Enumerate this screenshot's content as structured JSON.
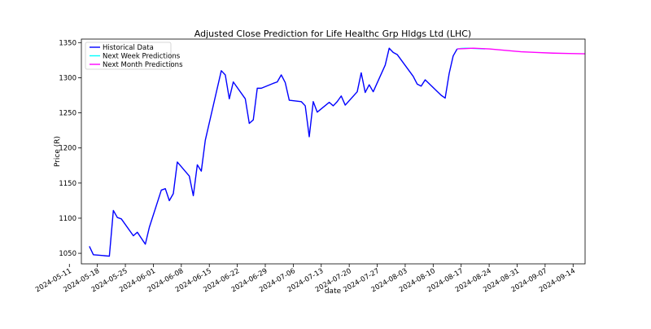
{
  "chart_data": {
    "type": "line",
    "title": "Adjusted Close Prediction for Life Healthc Grp Hldgs Ltd (LHC)",
    "xlabel": "date",
    "ylabel": "Price (R)",
    "ylim": [
      1035,
      1355
    ],
    "xlim": [
      "2024-05-14",
      "2024-09-17"
    ],
    "x_tick_labels": [
      "2024-05-11",
      "2024-05-18",
      "2024-05-25",
      "2024-06-01",
      "2024-06-08",
      "2024-06-15",
      "2024-06-22",
      "2024-06-29",
      "2024-07-06",
      "2024-07-13",
      "2024-07-20",
      "2024-07-27",
      "2024-08-03",
      "2024-08-10",
      "2024-08-17",
      "2024-08-24",
      "2024-08-31",
      "2024-09-07",
      "2024-09-14"
    ],
    "y_ticks": [
      1050,
      1100,
      1150,
      1200,
      1250,
      1300,
      1350
    ],
    "legend_position": "top-left",
    "grid": false,
    "series": [
      {
        "name": "Historical Data",
        "color": "#0000ff",
        "points": [
          [
            "2024-05-16",
            1060
          ],
          [
            "2024-05-17",
            1048
          ],
          [
            "2024-05-21",
            1046
          ],
          [
            "2024-05-22",
            1111
          ],
          [
            "2024-05-23",
            1101
          ],
          [
            "2024-05-24",
            1099
          ],
          [
            "2024-05-27",
            1075
          ],
          [
            "2024-05-28",
            1080
          ],
          [
            "2024-05-30",
            1063
          ],
          [
            "2024-05-31",
            1087
          ],
          [
            "2024-06-03",
            1140
          ],
          [
            "2024-06-04",
            1142
          ],
          [
            "2024-06-05",
            1125
          ],
          [
            "2024-06-06",
            1135
          ],
          [
            "2024-06-07",
            1180
          ],
          [
            "2024-06-10",
            1160
          ],
          [
            "2024-06-11",
            1132
          ],
          [
            "2024-06-12",
            1176
          ],
          [
            "2024-06-13",
            1167
          ],
          [
            "2024-06-14",
            1211
          ],
          [
            "2024-06-18",
            1310
          ],
          [
            "2024-06-19",
            1304
          ],
          [
            "2024-06-20",
            1270
          ],
          [
            "2024-06-21",
            1294
          ],
          [
            "2024-06-24",
            1270
          ],
          [
            "2024-06-25",
            1235
          ],
          [
            "2024-06-26",
            1240
          ],
          [
            "2024-06-27",
            1285
          ],
          [
            "2024-06-28",
            1285
          ],
          [
            "2024-07-01",
            1292
          ],
          [
            "2024-07-02",
            1294
          ],
          [
            "2024-07-03",
            1304
          ],
          [
            "2024-07-04",
            1293
          ],
          [
            "2024-07-05",
            1268
          ],
          [
            "2024-07-08",
            1266
          ],
          [
            "2024-07-09",
            1260
          ],
          [
            "2024-07-10",
            1216
          ],
          [
            "2024-07-11",
            1266
          ],
          [
            "2024-07-12",
            1251
          ],
          [
            "2024-07-15",
            1265
          ],
          [
            "2024-07-16",
            1260
          ],
          [
            "2024-07-17",
            1266
          ],
          [
            "2024-07-18",
            1274
          ],
          [
            "2024-07-19",
            1261
          ],
          [
            "2024-07-22",
            1280
          ],
          [
            "2024-07-23",
            1307
          ],
          [
            "2024-07-24",
            1279
          ],
          [
            "2024-07-25",
            1290
          ],
          [
            "2024-07-26",
            1280
          ],
          [
            "2024-07-29",
            1318
          ],
          [
            "2024-07-30",
            1342
          ],
          [
            "2024-07-31",
            1336
          ],
          [
            "2024-08-01",
            1333
          ],
          [
            "2024-08-05",
            1302
          ],
          [
            "2024-08-06",
            1291
          ],
          [
            "2024-08-07",
            1288
          ],
          [
            "2024-08-08",
            1297
          ],
          [
            "2024-08-12",
            1275
          ],
          [
            "2024-08-13",
            1271
          ],
          [
            "2024-08-14",
            1306
          ],
          [
            "2024-08-15",
            1331
          ],
          [
            "2024-08-16",
            1341
          ]
        ]
      },
      {
        "name": "Next Week Predictions",
        "color": "#00ffff",
        "points": [
          [
            "2024-08-16",
            1341
          ],
          [
            "2024-08-17",
            1341.8
          ],
          [
            "2024-08-18",
            1342
          ],
          [
            "2024-08-19",
            1342
          ],
          [
            "2024-08-20",
            1341.8
          ],
          [
            "2024-08-21",
            1341.5
          ],
          [
            "2024-08-22",
            1341.2
          ],
          [
            "2024-08-23",
            1341
          ]
        ]
      },
      {
        "name": "Next Month Predictions",
        "color": "#ff00ff",
        "points": [
          [
            "2024-08-16",
            1341
          ],
          [
            "2024-08-18",
            1341.5
          ],
          [
            "2024-08-20",
            1342
          ],
          [
            "2024-08-24",
            1341
          ],
          [
            "2024-08-28",
            1339
          ],
          [
            "2024-09-01",
            1337
          ],
          [
            "2024-09-05",
            1336
          ],
          [
            "2024-09-09",
            1335
          ],
          [
            "2024-09-13",
            1334.5
          ],
          [
            "2024-09-17",
            1334
          ]
        ]
      }
    ]
  }
}
